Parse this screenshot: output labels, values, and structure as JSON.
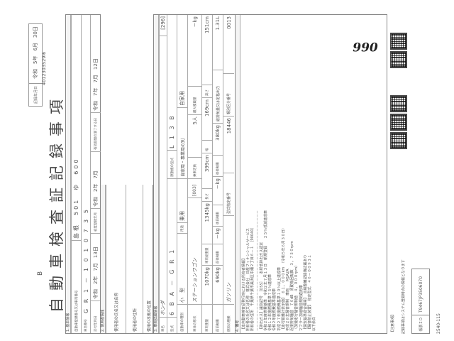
{
  "header": {
    "title": "自動車検査証記録事項",
    "mark": "B",
    "record_date_label": "記録年月日",
    "record_date": "令和　5年　6月　30日",
    "doc_number": "4012303529l6"
  },
  "basic": {
    "section": "1. 基本情報",
    "reg_label": "自動車登録番号又は車両番号",
    "reg_value": "島根　501　ゆ　600",
    "chassis_label": "車台番号",
    "chassis_value": "G R 1 － 1 0 1 0 7 3 5",
    "issue_label": "交付年月日",
    "issue_value": "令和　2年　7月　13日",
    "first_reg_label": "初度登録年月",
    "first_reg_value": "令和　2年　7月",
    "expiry_label": "有効期間の満了する日",
    "expiry_value": "令和　7年　7月　12日"
  },
  "user": {
    "section": "2. 使用者情報",
    "name_label": "使用者の氏名又は名称",
    "address_label": "使用者の住所",
    "base_label": "使用の本拠の位置"
  },
  "vehicle": {
    "section": "3. 車両詳細情報",
    "make_label": "車名",
    "make_value": "ホンダ",
    "make_code": "[296]",
    "model_label": "型式",
    "model_value": "6 B A － G R 1",
    "engine_label": "原動機の型式",
    "engine_value": "L 1 3 B",
    "kind_label": "自動車の種別",
    "kind_value": "小　型",
    "use_label": "用途",
    "use_value": "乗用",
    "private_label": "自家用・事業用の別",
    "private_value": "自家用",
    "body_label": "車体の形状",
    "body_value": "ステーションワゴン",
    "body_code": "[003]",
    "capacity_label": "乗車定員",
    "capacity_value": "5人",
    "max_load_label": "最大積載量",
    "max_load_value": "－kg",
    "weight_label": "車両重量",
    "weight_value": "1070kg",
    "gross_label": "車両総重量",
    "gross_value": "1345kg",
    "length_label": "長さ",
    "length_value": "399cm",
    "width_label": "幅",
    "width_value": "169cm",
    "height_label": "高さ",
    "height_value": "151cm",
    "ff_label": "前前軸重",
    "ff_value": "690kg",
    "fr_label": "前後軸重",
    "fr_value": "－kg",
    "rf_label": "後前軸重",
    "rf_value": "－kg",
    "rr_label": "後後軸重",
    "rr_value": "380kg",
    "disp_label": "総排気量又は定格出力",
    "disp_value": "1.31L",
    "fuel_label": "燃料の種類",
    "fuel_value": "ガソリン",
    "type_no_label": "型式指定番号",
    "type_no_value": "18446",
    "class_no_label": "類別区分番号",
    "class_no_value": "0013"
  },
  "remarks": {
    "section": "4. 備考",
    "text": "【本自動車検査証発行時における所有者情報】\n所有者の氏名又は名称　株式会社　日産フィナンシャルサービス\n所有者の住所　千葉県千葉市美浜区中瀬２丁目６－１　［90040］\n－－－－－－－－－－－－－－－－－－－－－－－－－－－－－－－－－－\n【排出ガス】識別記号　［OSS］　　本邦低排出ガス認定\n令和２年度燃費基準　令和２年７月１３日　新規登録　　２５％低減達成車\n令和１２年度燃費基準７５％達成車\n令和２年度燃費基準達成車\n平成２７年度燃費基準１０％以上達成車\n【走行距離計表示値】　６１，０００km　（令和５年６月３０日）\n平成２８年騒音規制　車両　　M1A2A\n近接排気騒音　７６dB　原動機回転数　３，７５０rpm\n（加速走行騒音規制値　４，０００rpm）\nマフラー加速騒音規制適用車\n【保安基準適合標章】　点検整備記録簿記載あり\n【騒音防止装置】　指定型式　４６－００９３１\n以下余白",
    "handwritten": "990"
  },
  "footer": {
    "notice_title": "【注意事項】",
    "notice_text": "記録事項はシステム登録時点の情報となります",
    "form_id_label": "帳票ＩＤ",
    "form_id_value": "T9467JP3506070",
    "code": "2540-115"
  }
}
